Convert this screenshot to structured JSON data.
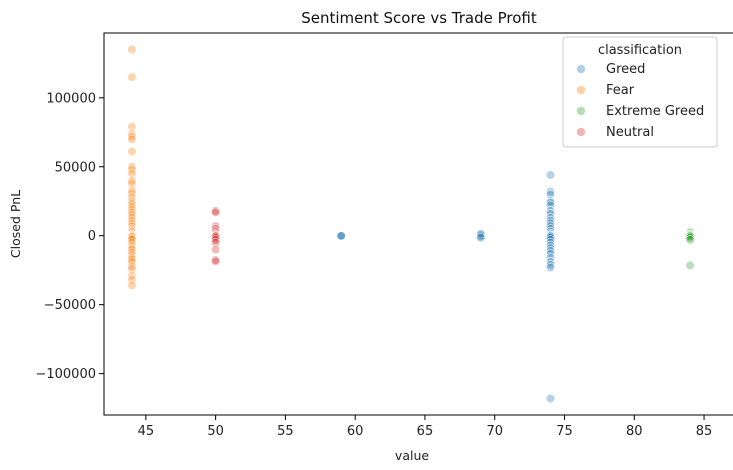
{
  "chart_data": {
    "type": "scatter",
    "title": "Sentiment Score vs Trade Profit",
    "xlabel": "value",
    "ylabel": "Closed PnL",
    "xlim": [
      42.0,
      86.0
    ],
    "ylim": [
      -130000,
      147000
    ],
    "xticks": [
      45,
      50,
      55,
      60,
      65,
      70,
      75,
      80,
      85
    ],
    "yticks": [
      -100000,
      -50000,
      0,
      50000,
      100000
    ],
    "ytick_labels": [
      "−100000",
      "−50000",
      "0",
      "50000",
      "100000"
    ],
    "grid": false,
    "legend": {
      "title": "classification",
      "placement": "top-right",
      "entries": [
        "Greed",
        "Fear",
        "Extreme Greed",
        "Neutral"
      ]
    },
    "series": [
      {
        "name": "Greed",
        "color": "#1f77b4",
        "x": [
          59,
          59,
          59,
          69,
          69,
          69,
          69,
          69,
          74,
          74,
          74,
          74,
          74,
          74,
          74,
          74,
          74,
          74,
          74,
          74,
          74,
          74,
          74,
          74,
          74,
          74,
          74,
          74,
          74,
          74,
          74,
          74,
          74,
          74,
          74,
          74,
          74,
          74
        ],
        "y": [
          0,
          200,
          -200,
          0,
          500,
          -500,
          1500,
          -1500,
          44000,
          32000,
          30000,
          25000,
          24000,
          22000,
          18000,
          16000,
          13000,
          11000,
          9000,
          7000,
          5000,
          3000,
          1500,
          500,
          0,
          -500,
          -1500,
          -3000,
          -5000,
          -7000,
          -9000,
          -11000,
          -13000,
          -16000,
          -19000,
          -21000,
          -23000,
          -118000
        ]
      },
      {
        "name": "Fear",
        "color": "#ff7f0e",
        "x": [
          44,
          44,
          44,
          44,
          44,
          44,
          44,
          44,
          44,
          44,
          44,
          44,
          44,
          44,
          44,
          44,
          44,
          44,
          44,
          44,
          44,
          44,
          44,
          44,
          44,
          44,
          44,
          44,
          44,
          44,
          44,
          44,
          44,
          44,
          44,
          44,
          44,
          44,
          44,
          44,
          44,
          44,
          44,
          44,
          44,
          44,
          44,
          44,
          44,
          44
        ],
        "y": [
          135000,
          115000,
          79000,
          74000,
          72000,
          70000,
          61000,
          50000,
          48000,
          45000,
          40000,
          38000,
          33000,
          31000,
          28000,
          25000,
          23000,
          21000,
          19000,
          17000,
          15000,
          13000,
          11000,
          9000,
          7000,
          5000,
          4000,
          3000,
          2000,
          1000,
          500,
          0,
          -500,
          -1000,
          -2000,
          -3000,
          -5000,
          -7000,
          -9000,
          -10000,
          -12000,
          -14000,
          -16000,
          -17000,
          -19000,
          -22000,
          -24000,
          -29000,
          -32000,
          -36000
        ]
      },
      {
        "name": "Extreme Greed",
        "color": "#2ca02c",
        "x": [
          84,
          84,
          84,
          84,
          84,
          84,
          84,
          84,
          84
        ],
        "y": [
          3000,
          2000,
          1000,
          500,
          0,
          -500,
          -1500,
          -3000,
          -21500
        ]
      },
      {
        "name": "Neutral",
        "color": "#d62728",
        "x": [
          50,
          50,
          50,
          50,
          50,
          50,
          50,
          50,
          50,
          50,
          50,
          50,
          50,
          50,
          50
        ],
        "y": [
          18000,
          17000,
          7000,
          5000,
          3000,
          1500,
          500,
          0,
          -500,
          -1500,
          -3000,
          -5000,
          -10000,
          -17500,
          -18500
        ]
      }
    ]
  }
}
